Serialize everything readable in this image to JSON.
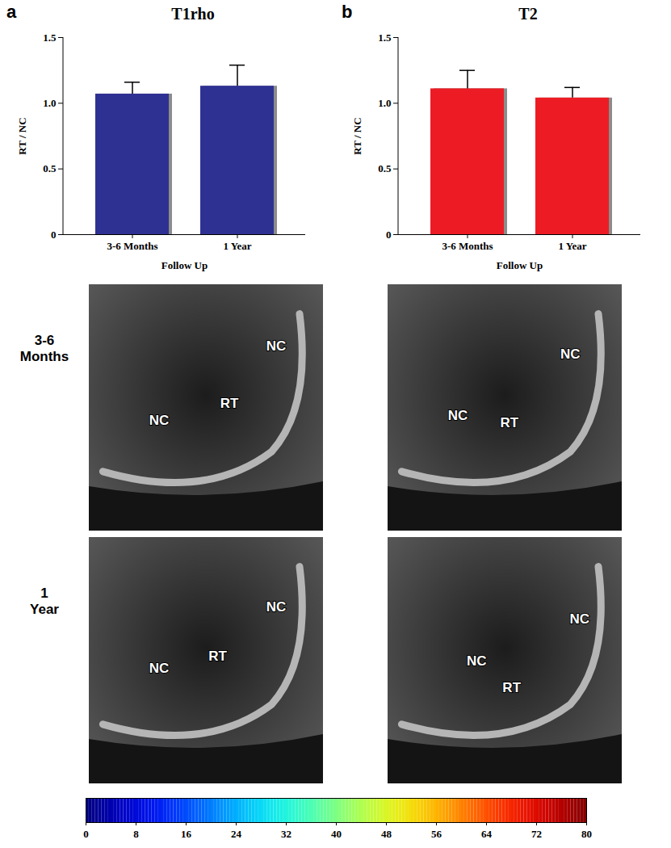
{
  "chart_data": [
    {
      "type": "bar",
      "panel": "a",
      "title": "T1rho",
      "categories": [
        "3-6 Months",
        "1 Year"
      ],
      "values": [
        1.07,
        1.13
      ],
      "errors": [
        0.09,
        0.16
      ],
      "color": "#2e3192",
      "xlabel": "Follow Up",
      "ylabel": "RT / NC",
      "ylim": [
        0,
        1.5
      ],
      "yticks": [
        0,
        0.5,
        {
          "value": 1,
          "label": "1.0"
        },
        1.5
      ],
      "grid": false
    },
    {
      "type": "bar",
      "panel": "b",
      "title": "T2",
      "categories": [
        "3-6 Months",
        "1 Year"
      ],
      "values": [
        1.11,
        1.04
      ],
      "errors": [
        0.14,
        0.08
      ],
      "color": "#ed1c24",
      "xlabel": "Follow Up",
      "ylabel": "RT / NC",
      "ylim": [
        0,
        1.5
      ],
      "yticks": [
        0,
        0.5,
        {
          "value": 1,
          "label": "1.0"
        },
        1.5
      ],
      "grid": false
    }
  ],
  "images": {
    "rows": [
      {
        "label": "3-6 Months",
        "panels": [
          [
            "NC",
            "RT",
            "NC"
          ],
          [
            "NC",
            "RT",
            "NC"
          ]
        ]
      },
      {
        "label": "1 Year",
        "panels": [
          [
            "NC",
            "RT",
            "NC"
          ],
          [
            "NC",
            "RT",
            "NC"
          ]
        ]
      }
    ]
  },
  "colorbar": {
    "range": [
      0,
      80
    ],
    "ticks": [
      0,
      8,
      16,
      24,
      32,
      40,
      48,
      56,
      64,
      72,
      80
    ],
    "colors": [
      "#00007f",
      "#0000ff",
      "#007fff",
      "#00ffff",
      "#7fff7f",
      "#ffff00",
      "#ff7f00",
      "#ff0000",
      "#7f0000"
    ]
  }
}
